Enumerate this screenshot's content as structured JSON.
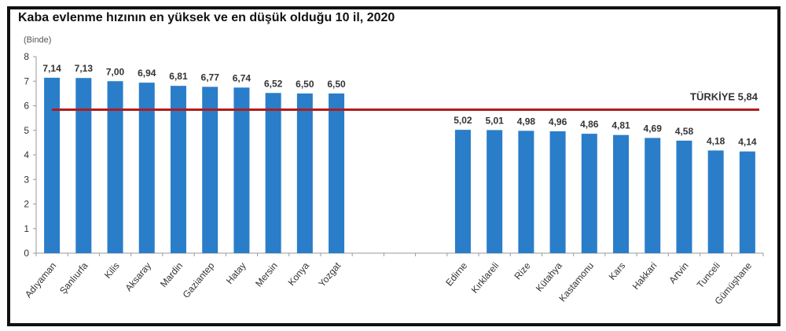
{
  "chart_data": {
    "type": "bar",
    "title": "Kaba evlenme hızının en yüksek ve en düşük olduğu 10 il, 2020",
    "ylabel": "(Binde)",
    "xlabel": "",
    "ylim": [
      0,
      8
    ],
    "yticks": [
      0,
      1,
      2,
      3,
      4,
      5,
      6,
      7,
      8
    ],
    "grid": false,
    "bar_color": "#2a7dc9",
    "groups": [
      {
        "name": "highest",
        "categories": [
          "Adıyaman",
          "Şanlıurfa",
          "Kilis",
          "Aksaray",
          "Mardin",
          "Gaziantep",
          "Hatay",
          "Mersin",
          "Konya",
          "Yozgat"
        ],
        "values": [
          7.14,
          7.13,
          7.0,
          6.94,
          6.81,
          6.77,
          6.74,
          6.52,
          6.5,
          6.5
        ],
        "labels": [
          "7,14",
          "7,13",
          "7,00",
          "6,94",
          "6,81",
          "6,77",
          "6,74",
          "6,52",
          "6,50",
          "6,50"
        ]
      },
      {
        "name": "lowest",
        "categories": [
          "Edirne",
          "Kırklareli",
          "Rize",
          "Kütahya",
          "Kastamonu",
          "Kars",
          "Hakkari",
          "Artvin",
          "Tunceli",
          "Gümüşhane"
        ],
        "values": [
          5.02,
          5.01,
          4.98,
          4.96,
          4.86,
          4.81,
          4.69,
          4.58,
          4.18,
          4.14
        ],
        "labels": [
          "5,02",
          "5,01",
          "4,98",
          "4,96",
          "4,86",
          "4,81",
          "4,69",
          "4,58",
          "4,18",
          "4,14"
        ]
      }
    ],
    "gap_slots": 3,
    "reference_line": {
      "label": "TÜRKİYE 5,84",
      "value": 5.84,
      "color": "#b01c1c"
    }
  }
}
